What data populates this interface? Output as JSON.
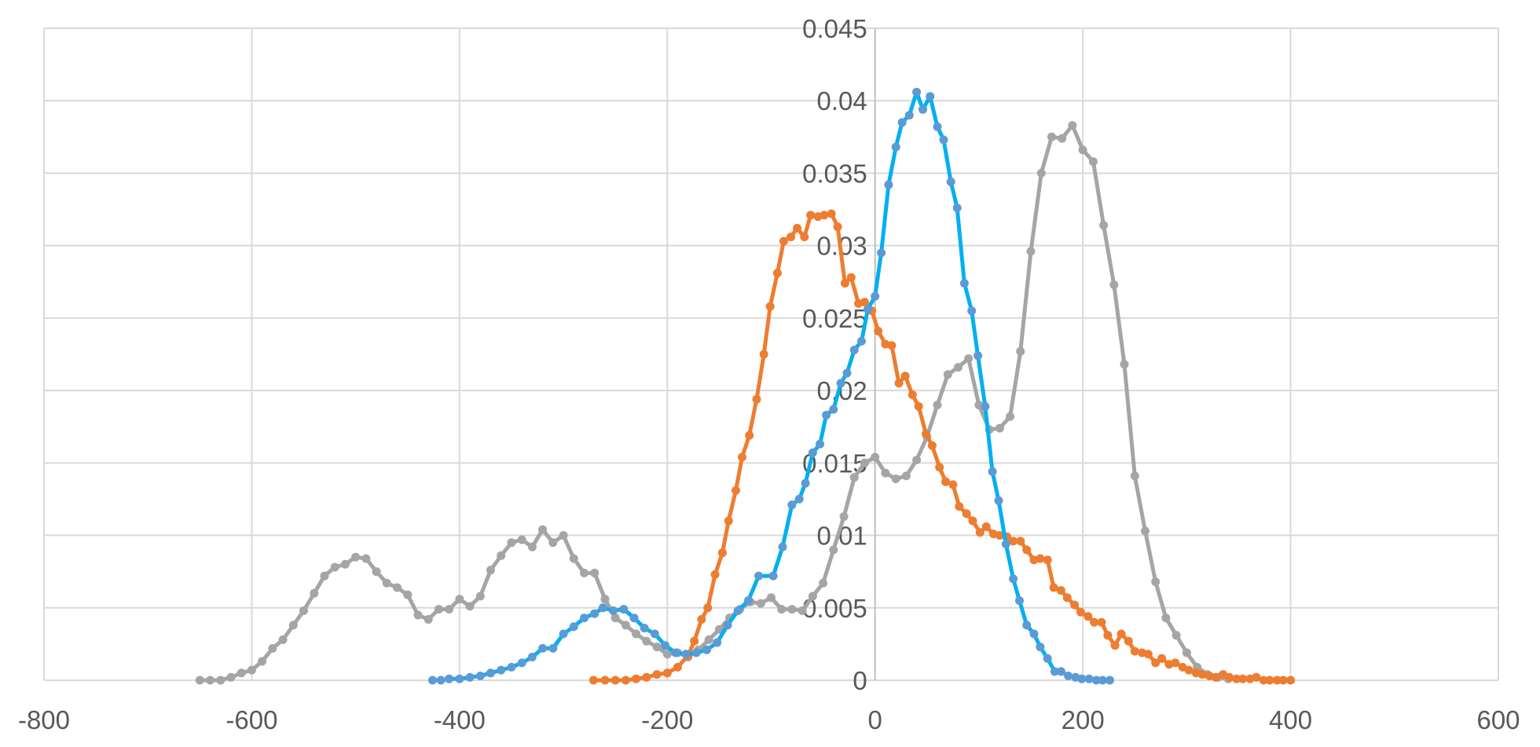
{
  "chart_data": {
    "type": "line",
    "title": "",
    "xlabel": "",
    "ylabel": "",
    "xlim": [
      -800,
      600
    ],
    "ylim": [
      0,
      0.045
    ],
    "x_ticks": [
      -800,
      -600,
      -400,
      -200,
      0,
      200,
      400,
      600
    ],
    "x_tick_labels": [
      "-800",
      "-600",
      "-400",
      "-200",
      "0",
      "200",
      "400",
      "600"
    ],
    "y_ticks": [
      0,
      0.005,
      0.01,
      0.015,
      0.02,
      0.025,
      0.03,
      0.035,
      0.04,
      0.045
    ],
    "y_tick_labels": [
      "0",
      "0.005",
      "0.01",
      "0.015",
      "0.02",
      "0.025",
      "0.03",
      "0.035",
      "0.04",
      "0.045"
    ],
    "grid": true,
    "legend": "none",
    "series": [
      {
        "name": "gray-series",
        "line_color": "#a5a5a5",
        "marker_color": "#a5a5a5",
        "x_start": -650,
        "x_step": 10,
        "values": [
          0,
          0,
          0,
          0.0002,
          0.0005,
          0.0007,
          0.0013,
          0.0022,
          0.0028,
          0.0038,
          0.0048,
          0.006,
          0.0072,
          0.0078,
          0.008,
          0.0085,
          0.0084,
          0.0075,
          0.0067,
          0.0064,
          0.0059,
          0.0045,
          0.0042,
          0.0049,
          0.0049,
          0.0056,
          0.0051,
          0.0058,
          0.0076,
          0.0086,
          0.0095,
          0.0097,
          0.0092,
          0.0104,
          0.0095,
          0.01,
          0.0084,
          0.0074,
          0.0074,
          0.0056,
          0.0043,
          0.0038,
          0.0032,
          0.0027,
          0.0023,
          0.0018,
          0.0019,
          0.0016,
          0.0021,
          0.0028,
          0.0035,
          0.0043,
          0.0049,
          0.0054,
          0.0053,
          0.0057,
          0.0049,
          0.0049,
          0.0048,
          0.0058,
          0.0067,
          0.009,
          0.0113,
          0.014,
          0.015,
          0.0154,
          0.0143,
          0.0139,
          0.0141,
          0.0152,
          0.0168,
          0.019,
          0.0211,
          0.0216,
          0.0222,
          0.019,
          0.0173,
          0.0174,
          0.0182,
          0.0227,
          0.0296,
          0.035,
          0.0375,
          0.0374,
          0.0383,
          0.0366,
          0.0358,
          0.0314,
          0.0273,
          0.0218,
          0.0141,
          0.0103,
          0.0068,
          0.0043,
          0.0031,
          0.0019,
          0.0009,
          0.0004,
          0.0002,
          0.0001
        ]
      },
      {
        "name": "orange-series",
        "line_color": "#ed7d31",
        "marker_color": "#ed7d31",
        "points": [
          [
            -271,
            0
          ],
          [
            -260,
            0
          ],
          [
            -250,
            0
          ],
          [
            -240,
            0
          ],
          [
            -230,
            0.0001
          ],
          [
            -220,
            0.0002
          ],
          [
            -210,
            0.0004
          ],
          [
            -200,
            0.0005
          ],
          [
            -190,
            0.0009
          ],
          [
            -180,
            0.0017
          ],
          [
            -174,
            0.0027
          ],
          [
            -167,
            0.0042
          ],
          [
            -161,
            0.005
          ],
          [
            -154,
            0.0073
          ],
          [
            -147,
            0.0088
          ],
          [
            -141,
            0.011
          ],
          [
            -134,
            0.0131
          ],
          [
            -128,
            0.0154
          ],
          [
            -121,
            0.0169
          ],
          [
            -114,
            0.0194
          ],
          [
            -107,
            0.0225
          ],
          [
            -101,
            0.0258
          ],
          [
            -94,
            0.0281
          ],
          [
            -88,
            0.0303
          ],
          [
            -81,
            0.0306
          ],
          [
            -75,
            0.0312
          ],
          [
            -68,
            0.0306
          ],
          [
            -62,
            0.0321
          ],
          [
            -55,
            0.032
          ],
          [
            -49,
            0.0321
          ],
          [
            -42,
            0.0322
          ],
          [
            -36,
            0.0313
          ],
          [
            -29,
            0.0274
          ],
          [
            -23,
            0.0278
          ],
          [
            -16,
            0.026
          ],
          [
            -10,
            0.0261
          ],
          [
            -3,
            0.0255
          ],
          [
            3,
            0.0241
          ],
          [
            10,
            0.0232
          ],
          [
            16,
            0.0231
          ],
          [
            23,
            0.0205
          ],
          [
            29,
            0.021
          ],
          [
            36,
            0.0197
          ],
          [
            42,
            0.0189
          ],
          [
            49,
            0.017
          ],
          [
            55,
            0.0162
          ],
          [
            62,
            0.0147
          ],
          [
            68,
            0.0137
          ],
          [
            75,
            0.0135
          ],
          [
            81,
            0.012
          ],
          [
            88,
            0.0115
          ],
          [
            94,
            0.011
          ],
          [
            101,
            0.0102
          ],
          [
            107,
            0.0106
          ],
          [
            114,
            0.0101
          ],
          [
            120,
            0.01
          ],
          [
            127,
            0.0099
          ],
          [
            133,
            0.0096
          ],
          [
            140,
            0.0096
          ],
          [
            146,
            0.009
          ],
          [
            153,
            0.0083
          ],
          [
            159,
            0.0084
          ],
          [
            166,
            0.0083
          ],
          [
            172,
            0.0064
          ],
          [
            179,
            0.0062
          ],
          [
            185,
            0.0057
          ],
          [
            192,
            0.0052
          ],
          [
            198,
            0.0047
          ],
          [
            205,
            0.0044
          ],
          [
            211,
            0.004
          ],
          [
            218,
            0.004
          ],
          [
            224,
            0.0031
          ],
          [
            231,
            0.0024
          ],
          [
            237,
            0.0032
          ],
          [
            244,
            0.0027
          ],
          [
            250,
            0.002
          ],
          [
            257,
            0.0019
          ],
          [
            263,
            0.0018
          ],
          [
            270,
            0.0012
          ],
          [
            276,
            0.0015
          ],
          [
            283,
            0.0011
          ],
          [
            289,
            0.0012
          ],
          [
            296,
            0.0009
          ],
          [
            302,
            0.0007
          ],
          [
            309,
            0.0005
          ],
          [
            315,
            0.0004
          ],
          [
            322,
            0.0003
          ],
          [
            328,
            0.0002
          ],
          [
            335,
            0.0004
          ],
          [
            341,
            0.0002
          ],
          [
            348,
            0.0001
          ],
          [
            354,
            0.0001
          ],
          [
            361,
            0.0001
          ],
          [
            367,
            0.0002
          ],
          [
            374,
            0
          ],
          [
            380,
            0
          ],
          [
            387,
            0
          ],
          [
            393,
            0
          ],
          [
            400,
            0
          ]
        ]
      },
      {
        "name": "blue-series",
        "line_color": "#00b0f0",
        "marker_color": "#5b9bd5",
        "points": [
          [
            -426,
            0
          ],
          [
            -418,
            0
          ],
          [
            -410,
            0.0001
          ],
          [
            -400,
            0.0001
          ],
          [
            -390,
            0.0002
          ],
          [
            -380,
            0.0003
          ],
          [
            -370,
            0.0005
          ],
          [
            -360,
            0.0007
          ],
          [
            -350,
            0.0009
          ],
          [
            -340,
            0.0012
          ],
          [
            -330,
            0.0016
          ],
          [
            -320,
            0.0022
          ],
          [
            -310,
            0.0022
          ],
          [
            -300,
            0.0032
          ],
          [
            -290,
            0.0037
          ],
          [
            -280,
            0.0043
          ],
          [
            -270,
            0.0046
          ],
          [
            -262,
            0.005
          ],
          [
            -252,
            0.0048
          ],
          [
            -242,
            0.0049
          ],
          [
            -232,
            0.0043
          ],
          [
            -222,
            0.0036
          ],
          [
            -212,
            0.0032
          ],
          [
            -202,
            0.0024
          ],
          [
            -192,
            0.0019
          ],
          [
            -182,
            0.0018
          ],
          [
            -172,
            0.0019
          ],
          [
            -162,
            0.0021
          ],
          [
            -152,
            0.0026
          ],
          [
            -142,
            0.0038
          ],
          [
            -132,
            0.0048
          ],
          [
            -122,
            0.0055
          ],
          [
            -112,
            0.0072
          ],
          [
            -98,
            0.0072
          ],
          [
            -89,
            0.0092
          ],
          [
            -80,
            0.0121
          ],
          [
            -73,
            0.0125
          ],
          [
            -67,
            0.0136
          ],
          [
            -60,
            0.0157
          ],
          [
            -53,
            0.0163
          ],
          [
            -47,
            0.0183
          ],
          [
            -40,
            0.0187
          ],
          [
            -33,
            0.0205
          ],
          [
            -27,
            0.0212
          ],
          [
            -20,
            0.0228
          ],
          [
            -13,
            0.0234
          ],
          [
            -7,
            0.0256
          ],
          [
            0,
            0.0265
          ],
          [
            6,
            0.0295
          ],
          [
            13,
            0.0342
          ],
          [
            20,
            0.0368
          ],
          [
            26,
            0.0385
          ],
          [
            33,
            0.039
          ],
          [
            40,
            0.0406
          ],
          [
            46,
            0.0394
          ],
          [
            53,
            0.0403
          ],
          [
            60,
            0.0382
          ],
          [
            66,
            0.0373
          ],
          [
            73,
            0.0344
          ],
          [
            79,
            0.0326
          ],
          [
            86,
            0.0274
          ],
          [
            93,
            0.0255
          ],
          [
            99,
            0.0224
          ],
          [
            106,
            0.0189
          ],
          [
            113,
            0.0144
          ],
          [
            119,
            0.0124
          ],
          [
            126,
            0.0094
          ],
          [
            133,
            0.007
          ],
          [
            139,
            0.0055
          ],
          [
            146,
            0.0038
          ],
          [
            153,
            0.0032
          ],
          [
            159,
            0.0023
          ],
          [
            166,
            0.0015
          ],
          [
            173,
            0.0006
          ],
          [
            179,
            0.0006
          ],
          [
            186,
            0.0003
          ],
          [
            193,
            0.0002
          ],
          [
            199,
            0.0001
          ],
          [
            206,
            0.0001
          ],
          [
            213,
            0
          ],
          [
            219,
            0
          ],
          [
            226,
            0
          ]
        ]
      }
    ]
  }
}
